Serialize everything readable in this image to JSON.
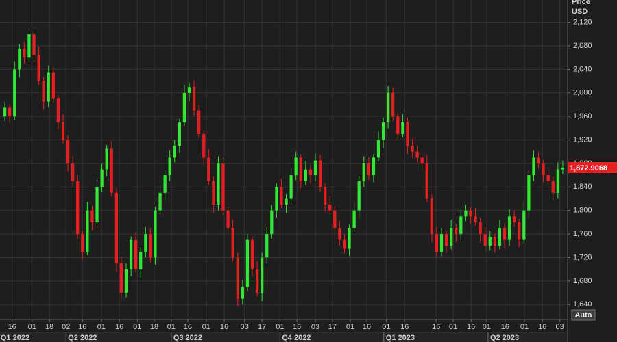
{
  "chart_data": {
    "type": "candlestick",
    "ylabel": "Price",
    "yunit": "USD",
    "x": [
      1,
      2,
      3,
      4,
      5,
      6,
      7,
      8,
      9,
      10,
      11,
      12,
      13,
      14,
      15,
      16,
      17,
      18,
      19,
      20,
      21,
      22,
      23,
      24,
      25,
      26,
      27,
      28,
      29,
      30,
      31,
      32,
      33,
      34,
      35,
      36,
      37,
      38,
      39,
      40,
      41,
      42,
      43,
      44,
      45,
      46,
      47,
      48,
      49,
      50,
      51,
      52,
      53,
      54,
      55,
      56,
      57,
      58,
      59,
      60,
      61,
      62,
      63,
      64,
      65,
      66,
      67,
      68,
      69,
      70,
      71,
      72,
      73,
      74,
      75,
      76,
      77,
      78,
      79,
      80,
      81,
      82,
      83,
      84,
      85,
      86,
      87,
      88,
      89,
      90,
      91,
      92,
      93,
      94,
      95,
      96,
      97,
      98,
      99,
      100,
      101,
      102,
      103,
      104,
      105,
      106,
      107,
      108,
      109,
      110,
      111,
      112,
      113,
      114,
      115,
      116
    ],
    "open": [
      1960,
      1975,
      1960,
      2040,
      2075,
      2060,
      2100,
      2065,
      2020,
      1985,
      2035,
      1990,
      1950,
      1920,
      1880,
      1850,
      1760,
      1730,
      1800,
      1780,
      1840,
      1870,
      1905,
      1830,
      1710,
      1660,
      1700,
      1750,
      1700,
      1730,
      1760,
      1720,
      1800,
      1830,
      1860,
      1890,
      1910,
      1950,
      2000,
      2010,
      1970,
      1930,
      1890,
      1850,
      1810,
      1880,
      1800,
      1770,
      1720,
      1650,
      1670,
      1750,
      1700,
      1660,
      1720,
      1760,
      1800,
      1840,
      1810,
      1820,
      1860,
      1890,
      1850,
      1870,
      1860,
      1885,
      1840,
      1810,
      1800,
      1770,
      1750,
      1735,
      1770,
      1800,
      1850,
      1880,
      1860,
      1890,
      1920,
      1950,
      2000,
      1960,
      1930,
      1950,
      1910,
      1900,
      1890,
      1880,
      1820,
      1760,
      1730,
      1760,
      1740,
      1770,
      1760,
      1790,
      1800,
      1790,
      1780,
      1760,
      1740,
      1755,
      1740,
      1770,
      1750,
      1790,
      1780,
      1750,
      1800,
      1860,
      1890,
      1880,
      1860,
      1850,
      1830,
      1870
    ],
    "high": [
      1985,
      1981,
      2054,
      2083,
      2087,
      2110,
      2106,
      2079,
      2028,
      2047,
      2045,
      1996,
      1964,
      1928,
      1892,
      1860,
      1766,
      1814,
      1808,
      1852,
      1880,
      1911,
      1919,
      1838,
      1722,
      1710,
      1756,
      1764,
      1738,
      1772,
      1770,
      1806,
      1844,
      1868,
      1902,
      1920,
      1956,
      2014,
      2018,
      2022,
      1980,
      1936,
      1904,
      1858,
      1892,
      1890,
      1806,
      1784,
      1728,
      1682,
      1760,
      1756,
      1714,
      1728,
      1772,
      1810,
      1846,
      1854,
      1828,
      1872,
      1900,
      1896,
      1884,
      1878,
      1897,
      1895,
      1846,
      1824,
      1808,
      1782,
      1760,
      1776,
      1814,
      1858,
      1892,
      1890,
      1896,
      1934,
      1958,
      2012,
      2010,
      1966,
      1964,
      1958,
      1922,
      1910,
      1896,
      1894,
      1828,
      1772,
      1770,
      1766,
      1784,
      1778,
      1802,
      1810,
      1806,
      1804,
      1788,
      1772,
      1765,
      1761,
      1784,
      1778,
      1802,
      1800,
      1786,
      1814,
      1868,
      1902,
      1900,
      1886,
      1874,
      1858,
      1882,
      1885
    ],
    "low": [
      1952,
      1948,
      1954,
      2026,
      2050,
      2052,
      2053,
      2014,
      1971,
      1975,
      1982,
      1938,
      1914,
      1866,
      1840,
      1752,
      1718,
      1724,
      1766,
      1770,
      1832,
      1858,
      1824,
      1696,
      1650,
      1652,
      1688,
      1694,
      1686,
      1720,
      1712,
      1708,
      1794,
      1816,
      1850,
      1882,
      1898,
      1944,
      1986,
      1960,
      1922,
      1878,
      1844,
      1796,
      1800,
      1792,
      1758,
      1714,
      1636,
      1640,
      1662,
      1688,
      1654,
      1646,
      1710,
      1752,
      1788,
      1804,
      1796,
      1810,
      1852,
      1838,
      1844,
      1846,
      1850,
      1832,
      1798,
      1794,
      1756,
      1740,
      1727,
      1723,
      1764,
      1786,
      1840,
      1852,
      1848,
      1884,
      1906,
      1940,
      1952,
      1918,
      1924,
      1896,
      1890,
      1882,
      1868,
      1814,
      1746,
      1720,
      1722,
      1728,
      1734,
      1746,
      1750,
      1782,
      1778,
      1774,
      1746,
      1730,
      1732,
      1728,
      1734,
      1736,
      1740,
      1772,
      1738,
      1744,
      1786,
      1850,
      1872,
      1848,
      1844,
      1816,
      1820,
      1862
    ],
    "close": [
      1975,
      1960,
      2040,
      2075,
      2060,
      2100,
      2065,
      2020,
      1985,
      2035,
      1990,
      1950,
      1920,
      1880,
      1850,
      1760,
      1730,
      1800,
      1780,
      1840,
      1870,
      1905,
      1830,
      1710,
      1660,
      1700,
      1750,
      1700,
      1730,
      1760,
      1720,
      1800,
      1830,
      1860,
      1890,
      1910,
      1950,
      2000,
      2010,
      1970,
      1930,
      1890,
      1850,
      1810,
      1880,
      1800,
      1770,
      1720,
      1650,
      1670,
      1750,
      1700,
      1660,
      1720,
      1760,
      1800,
      1840,
      1810,
      1820,
      1860,
      1890,
      1850,
      1870,
      1860,
      1885,
      1840,
      1810,
      1800,
      1770,
      1750,
      1735,
      1770,
      1800,
      1850,
      1880,
      1860,
      1890,
      1920,
      1950,
      2000,
      1960,
      1930,
      1950,
      1910,
      1900,
      1890,
      1880,
      1820,
      1760,
      1730,
      1760,
      1740,
      1770,
      1760,
      1790,
      1800,
      1790,
      1780,
      1760,
      1740,
      1755,
      1740,
      1770,
      1750,
      1790,
      1780,
      1750,
      1800,
      1860,
      1890,
      1880,
      1860,
      1850,
      1830,
      1870,
      1872.9068
    ],
    "up_color": "#33e833",
    "down_color": "#e62020",
    "last_price_label": "1,872.9068",
    "last_price_color": "#e62020",
    "autoscale_button": "Auto",
    "grid": true,
    "xlim": [
      0,
      117
    ],
    "xticks": [
      {
        "value": 2.5,
        "label": "16"
      },
      {
        "value": 6.6,
        "label": "01"
      },
      {
        "value": 10.2,
        "label": "18"
      },
      {
        "value": 13.6,
        "label": "02"
      },
      {
        "value": 17.0,
        "label": "16"
      },
      {
        "value": 20.9,
        "label": "01"
      },
      {
        "value": 24.6,
        "label": "16"
      },
      {
        "value": 28.3,
        "label": "01"
      },
      {
        "value": 31.8,
        "label": "18"
      },
      {
        "value": 35.3,
        "label": "01"
      },
      {
        "value": 38.7,
        "label": "16"
      },
      {
        "value": 42.5,
        "label": "01"
      },
      {
        "value": 46.2,
        "label": "16"
      },
      {
        "value": 50.4,
        "label": "03"
      },
      {
        "value": 54.0,
        "label": "17"
      },
      {
        "value": 57.7,
        "label": "01"
      },
      {
        "value": 61.2,
        "label": "16"
      },
      {
        "value": 65.0,
        "label": "03"
      },
      {
        "value": 68.5,
        "label": "17"
      },
      {
        "value": 72.2,
        "label": "01"
      },
      {
        "value": 75.6,
        "label": "16"
      },
      {
        "value": 79.6,
        "label": "01"
      },
      {
        "value": 83.4,
        "label": "16"
      },
      {
        "value": 89.9,
        "label": "16"
      },
      {
        "value": 93.4,
        "label": "01"
      },
      {
        "value": 97.1,
        "label": "16"
      },
      {
        "value": 100.3,
        "label": "01"
      },
      {
        "value": 104.1,
        "label": "16"
      },
      {
        "value": 108.1,
        "label": "01"
      },
      {
        "value": 111.8,
        "label": "16"
      },
      {
        "value": 115.4,
        "label": "03"
      }
    ],
    "quarter_ticks": [
      {
        "value": -0.3,
        "label": "Q1 2022"
      },
      {
        "value": 13.6,
        "label": "Q2 2022"
      },
      {
        "value": 35.3,
        "label": "Q3 2022"
      },
      {
        "value": 57.7,
        "label": "Q4 2022"
      },
      {
        "value": 79.1,
        "label": "Q1 2023"
      },
      {
        "value": 100.6,
        "label": "Q2 2023"
      }
    ],
    "ylim": [
      1617,
      2158
    ],
    "yticks": [
      {
        "value": 1640,
        "label": "1,640"
      },
      {
        "value": 1680,
        "label": "1,680"
      },
      {
        "value": 1720,
        "label": "1,720"
      },
      {
        "value": 1760,
        "label": "1,760"
      },
      {
        "value": 1800,
        "label": "1,800"
      },
      {
        "value": 1840,
        "label": "1,840"
      },
      {
        "value": 1880,
        "label": "1,880"
      },
      {
        "value": 1920,
        "label": "1,920"
      },
      {
        "value": 1960,
        "label": "1,960"
      },
      {
        "value": 2000,
        "label": "2,000"
      },
      {
        "value": 2040,
        "label": "2,040"
      },
      {
        "value": 2080,
        "label": "2,080"
      },
      {
        "value": 2120,
        "label": "2,120"
      }
    ]
  }
}
